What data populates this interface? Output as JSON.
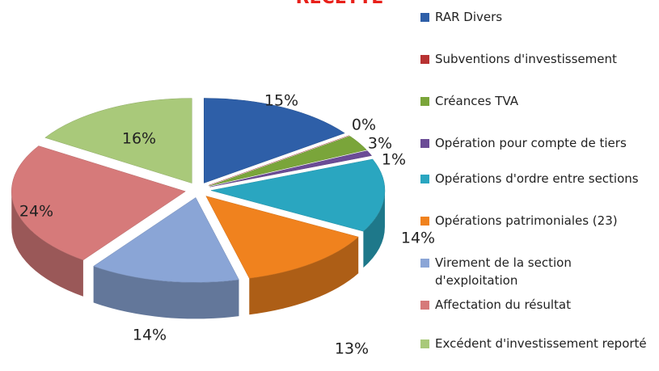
{
  "chart_data": {
    "type": "pie",
    "title": "RECETTE",
    "categories": [
      "RAR Divers",
      "Subventions d'investissement",
      "Créances TVA",
      "Opération pour compte de tiers",
      "Opérations d'ordre entre sections",
      "Opérations patrimoniales (23)",
      "Virement de la section d'exploitation",
      "Affectation du résultat",
      "Excédent d'investissement reporté"
    ],
    "values": [
      15,
      0,
      3,
      1,
      14,
      13,
      14,
      24,
      16
    ],
    "value_labels": [
      "15%",
      "0%",
      "3%",
      "1%",
      "14%",
      "13%",
      "14%",
      "24%",
      "16%"
    ],
    "colors": [
      "#2e5fa8",
      "#b83232",
      "#7aa53a",
      "#6b4c96",
      "#2aa6c0",
      "#f0821e",
      "#8aa5d6",
      "#d67a7a",
      "#a9c97a"
    ],
    "legend": "right"
  }
}
